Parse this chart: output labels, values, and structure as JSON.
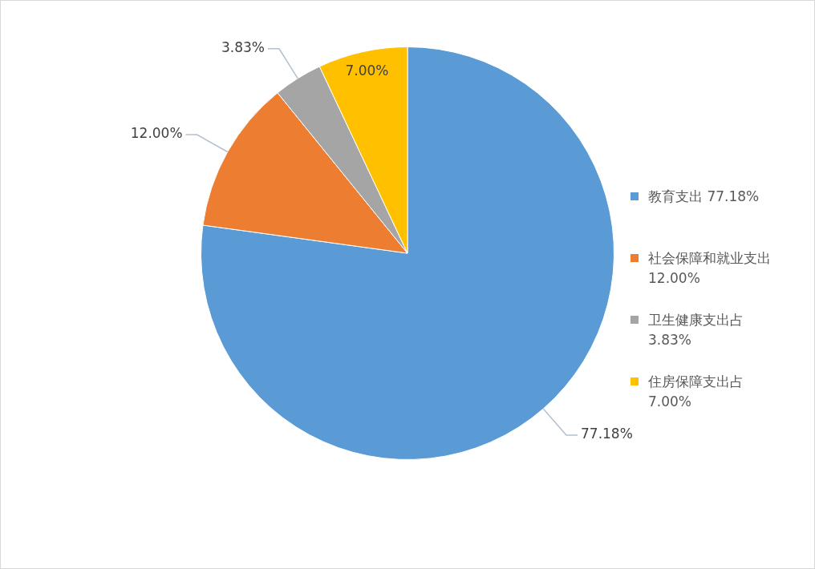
{
  "chart_data": {
    "type": "pie",
    "categories": [
      "教育支出 77.18%",
      "社会保障和就业支出 12.00%",
      "卫生健康支出占 3.83%",
      "住房保障支出占 7.00%"
    ],
    "values": [
      77.18,
      12.0,
      3.83,
      7.0
    ],
    "colors": [
      "#5b9bd5",
      "#ed7d31",
      "#a5a5a5",
      "#ffc000"
    ],
    "value_labels": [
      "77.18%",
      "12.00%",
      "3.83%",
      "7.00%"
    ],
    "legend": "right"
  }
}
